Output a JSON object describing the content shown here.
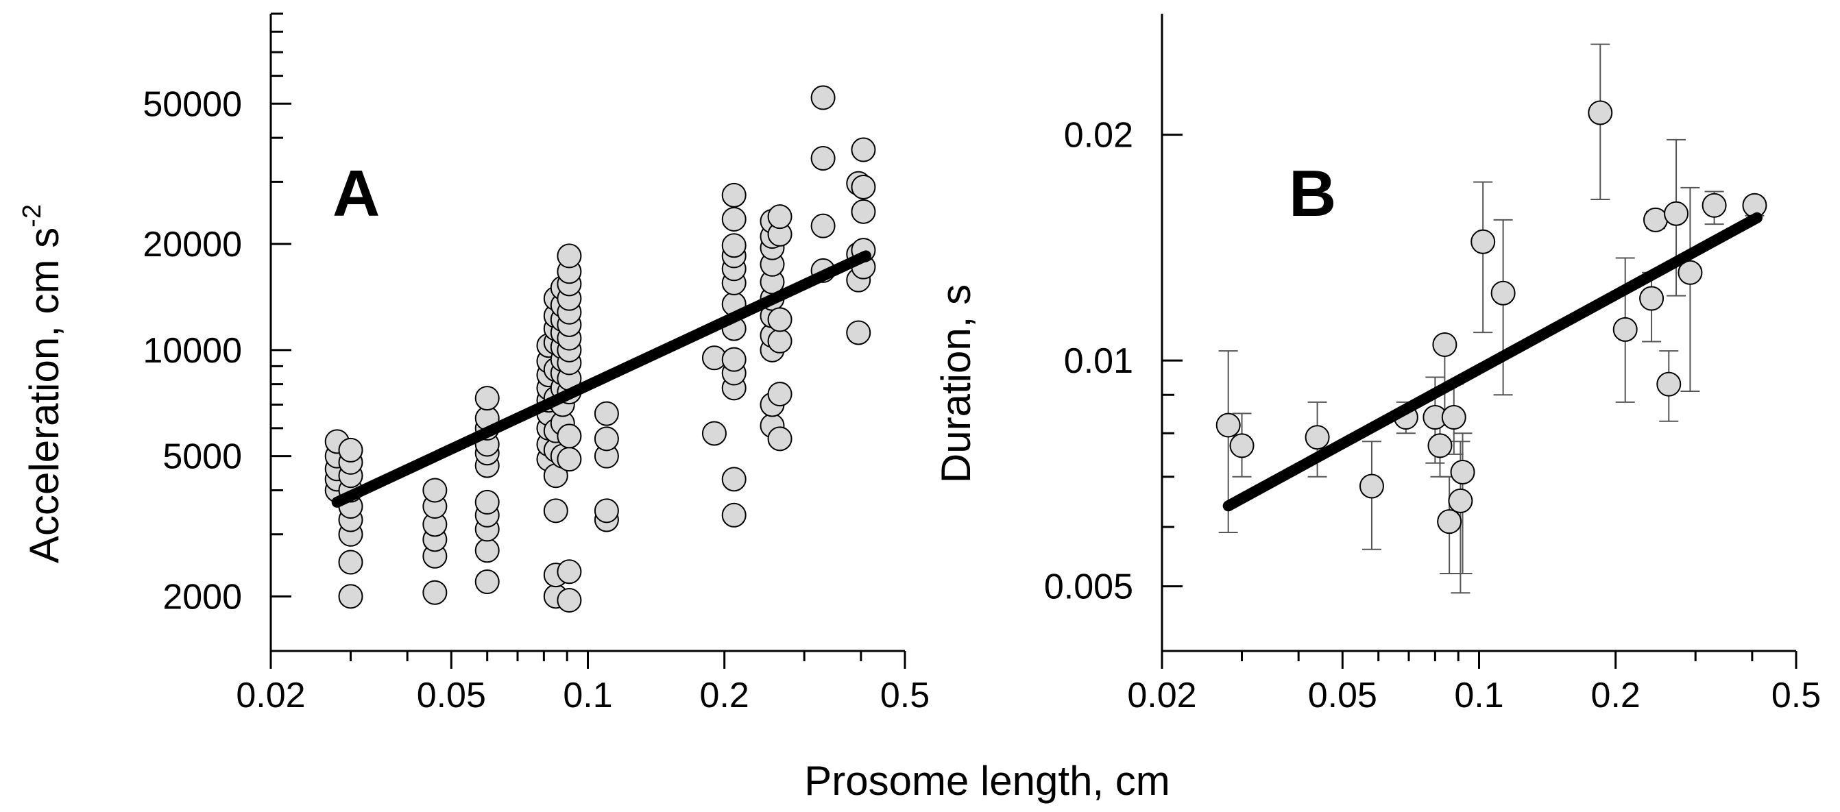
{
  "xlabel_shared": "Prosome length, cm",
  "chart_data": [
    {
      "type": "scatter",
      "panel": "A",
      "ylabel": "Acceleration, cm s",
      "ylabel_sup": "-2",
      "xscale": "log",
      "yscale": "log",
      "xlim": [
        0.02,
        0.5
      ],
      "ylim": [
        1400,
        90000
      ],
      "xticks": [
        0.02,
        0.05,
        0.1,
        0.2,
        0.5
      ],
      "xtick_labels": [
        "0.02",
        "0.05",
        "0.1",
        "0.2",
        "0.5"
      ],
      "yticks": [
        2000,
        5000,
        10000,
        20000,
        50000
      ],
      "ytick_labels": [
        "2000",
        "5000",
        "10000",
        "20000",
        "50000"
      ],
      "fit_line": {
        "x": [
          0.028,
          0.41
        ],
        "y": [
          3700,
          18500
        ]
      },
      "points": [
        [
          0.028,
          4000
        ],
        [
          0.028,
          4300
        ],
        [
          0.028,
          4600
        ],
        [
          0.028,
          5000
        ],
        [
          0.028,
          5500
        ],
        [
          0.03,
          2000
        ],
        [
          0.03,
          2500
        ],
        [
          0.03,
          3000
        ],
        [
          0.03,
          3300
        ],
        [
          0.03,
          3600
        ],
        [
          0.03,
          4000
        ],
        [
          0.03,
          4400
        ],
        [
          0.03,
          4800
        ],
        [
          0.03,
          5200
        ],
        [
          0.046,
          2050
        ],
        [
          0.046,
          2600
        ],
        [
          0.046,
          2900
        ],
        [
          0.046,
          3200
        ],
        [
          0.046,
          3600
        ],
        [
          0.046,
          4000
        ],
        [
          0.06,
          2200
        ],
        [
          0.06,
          2700
        ],
        [
          0.06,
          3100
        ],
        [
          0.06,
          3400
        ],
        [
          0.06,
          3700
        ],
        [
          0.06,
          4700
        ],
        [
          0.06,
          5100
        ],
        [
          0.06,
          5400
        ],
        [
          0.06,
          6000
        ],
        [
          0.06,
          6400
        ],
        [
          0.06,
          7300
        ],
        [
          0.082,
          4900
        ],
        [
          0.082,
          5400
        ],
        [
          0.082,
          6000
        ],
        [
          0.082,
          6600
        ],
        [
          0.082,
          7200
        ],
        [
          0.082,
          7800
        ],
        [
          0.082,
          8500
        ],
        [
          0.082,
          9300
        ],
        [
          0.082,
          10300
        ],
        [
          0.085,
          2000
        ],
        [
          0.085,
          2300
        ],
        [
          0.085,
          3500
        ],
        [
          0.085,
          4400
        ],
        [
          0.085,
          5200
        ],
        [
          0.085,
          5900
        ],
        [
          0.085,
          7300
        ],
        [
          0.085,
          8800
        ],
        [
          0.085,
          10500
        ],
        [
          0.085,
          11500
        ],
        [
          0.085,
          12500
        ],
        [
          0.085,
          14000
        ],
        [
          0.088,
          5000
        ],
        [
          0.088,
          6200
        ],
        [
          0.088,
          7000
        ],
        [
          0.088,
          7800
        ],
        [
          0.088,
          8600
        ],
        [
          0.088,
          9400
        ],
        [
          0.088,
          10200
        ],
        [
          0.088,
          11200
        ],
        [
          0.088,
          12200
        ],
        [
          0.088,
          13400
        ],
        [
          0.088,
          15000
        ],
        [
          0.091,
          1950
        ],
        [
          0.091,
          2350
        ],
        [
          0.091,
          4900
        ],
        [
          0.091,
          5700
        ],
        [
          0.091,
          7600
        ],
        [
          0.091,
          8300
        ],
        [
          0.091,
          9200
        ],
        [
          0.091,
          10000
        ],
        [
          0.091,
          10800
        ],
        [
          0.091,
          11800
        ],
        [
          0.091,
          12800
        ],
        [
          0.091,
          14000
        ],
        [
          0.091,
          15400
        ],
        [
          0.091,
          16700
        ],
        [
          0.091,
          18500
        ],
        [
          0.11,
          3300
        ],
        [
          0.11,
          3500
        ],
        [
          0.11,
          5000
        ],
        [
          0.11,
          5600
        ],
        [
          0.11,
          6600
        ],
        [
          0.19,
          5800
        ],
        [
          0.19,
          9500
        ],
        [
          0.21,
          3400
        ],
        [
          0.21,
          4300
        ],
        [
          0.21,
          7800
        ],
        [
          0.21,
          8600
        ],
        [
          0.21,
          9400
        ],
        [
          0.21,
          11500
        ],
        [
          0.21,
          13500
        ],
        [
          0.21,
          15500
        ],
        [
          0.21,
          17000
        ],
        [
          0.21,
          18500
        ],
        [
          0.21,
          19800
        ],
        [
          0.21,
          23500
        ],
        [
          0.21,
          27500
        ],
        [
          0.255,
          6100
        ],
        [
          0.255,
          7000
        ],
        [
          0.255,
          10000
        ],
        [
          0.255,
          11000
        ],
        [
          0.255,
          12500
        ],
        [
          0.255,
          14000
        ],
        [
          0.255,
          15600
        ],
        [
          0.255,
          17500
        ],
        [
          0.255,
          19500
        ],
        [
          0.255,
          21000
        ],
        [
          0.255,
          23200
        ],
        [
          0.265,
          5600
        ],
        [
          0.265,
          7500
        ],
        [
          0.265,
          10600
        ],
        [
          0.265,
          12200
        ],
        [
          0.265,
          21300
        ],
        [
          0.265,
          23900
        ],
        [
          0.33,
          16800
        ],
        [
          0.33,
          22500
        ],
        [
          0.33,
          35000
        ],
        [
          0.33,
          52000
        ],
        [
          0.395,
          11200
        ],
        [
          0.395,
          15800
        ],
        [
          0.395,
          18700
        ],
        [
          0.395,
          29700
        ],
        [
          0.405,
          17200
        ],
        [
          0.405,
          19200
        ],
        [
          0.405,
          24700
        ],
        [
          0.405,
          29000
        ],
        [
          0.405,
          37000
        ]
      ]
    },
    {
      "type": "scatter",
      "panel": "B",
      "ylabel": "Duration, s",
      "xscale": "log",
      "yscale": "log",
      "xlim": [
        0.02,
        0.5
      ],
      "ylim": [
        0.0041,
        0.029
      ],
      "xticks": [
        0.02,
        0.05,
        0.1,
        0.2,
        0.5
      ],
      "xtick_labels": [
        "0.02",
        "0.05",
        "0.1",
        "0.2",
        "0.5"
      ],
      "yticks": [
        0.005,
        0.01,
        0.02
      ],
      "ytick_labels": [
        "0.005",
        "0.01",
        "0.02"
      ],
      "fit_line": {
        "x": [
          0.028,
          0.41
        ],
        "y": [
          0.0064,
          0.0155
        ]
      },
      "points": [
        {
          "x": 0.028,
          "y": 0.0082,
          "lo": 0.0059,
          "hi": 0.0103
        },
        {
          "x": 0.03,
          "y": 0.0077,
          "lo": 0.007,
          "hi": 0.0085
        },
        {
          "x": 0.044,
          "y": 0.0079,
          "lo": 0.007,
          "hi": 0.0088
        },
        {
          "x": 0.058,
          "y": 0.0068,
          "lo": 0.0056,
          "hi": 0.0078
        },
        {
          "x": 0.069,
          "y": 0.0084,
          "lo": 0.008,
          "hi": 0.0088
        },
        {
          "x": 0.08,
          "y": 0.0084,
          "lo": 0.0073,
          "hi": 0.0095
        },
        {
          "x": 0.082,
          "y": 0.0077,
          "lo": 0.007,
          "hi": 0.0083
        },
        {
          "x": 0.084,
          "y": 0.0105,
          "lo": 0.0082,
          "hi": 0.0107
        },
        {
          "x": 0.086,
          "y": 0.0061,
          "lo": 0.0052,
          "hi": 0.007
        },
        {
          "x": 0.088,
          "y": 0.0084,
          "lo": 0.0075,
          "hi": 0.0093
        },
        {
          "x": 0.091,
          "y": 0.0065,
          "lo": 0.0049,
          "hi": 0.0078
        },
        {
          "x": 0.092,
          "y": 0.0071,
          "lo": 0.0052,
          "hi": 0.008
        },
        {
          "x": 0.102,
          "y": 0.0144,
          "lo": 0.0109,
          "hi": 0.0173
        },
        {
          "x": 0.113,
          "y": 0.0123,
          "lo": 0.009,
          "hi": 0.0154
        },
        {
          "x": 0.185,
          "y": 0.0214,
          "lo": 0.0164,
          "hi": 0.0264
        },
        {
          "x": 0.21,
          "y": 0.011,
          "lo": 0.0088,
          "hi": 0.0137
        },
        {
          "x": 0.24,
          "y": 0.0121,
          "lo": 0.0106,
          "hi": 0.0131
        },
        {
          "x": 0.245,
          "y": 0.0154,
          "lo": 0.015,
          "hi": 0.0158
        },
        {
          "x": 0.262,
          "y": 0.0093,
          "lo": 0.0083,
          "hi": 0.0103
        },
        {
          "x": 0.272,
          "y": 0.0157,
          "lo": 0.0122,
          "hi": 0.0197
        },
        {
          "x": 0.292,
          "y": 0.0131,
          "lo": 0.0091,
          "hi": 0.017
        },
        {
          "x": 0.33,
          "y": 0.0161,
          "lo": 0.0152,
          "hi": 0.0168
        },
        {
          "x": 0.405,
          "y": 0.0161,
          "lo": 0.0156,
          "hi": 0.0165
        }
      ]
    }
  ]
}
